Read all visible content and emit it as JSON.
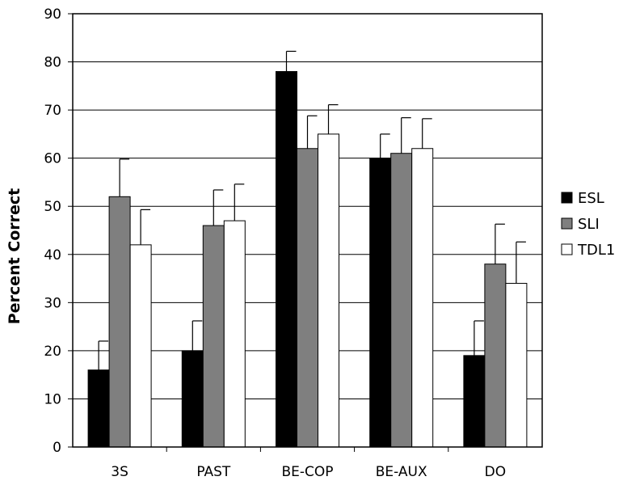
{
  "chart_data": {
    "type": "bar",
    "title": "",
    "xlabel": "",
    "ylabel": "Percent Correct",
    "ylim": [
      0,
      90
    ],
    "yticks": [
      0,
      10,
      20,
      30,
      40,
      50,
      60,
      70,
      80,
      90
    ],
    "grid": true,
    "legend_position": "right",
    "categories": [
      "3S",
      "PAST",
      "BE-COP",
      "BE-AUX",
      "DO"
    ],
    "series": [
      {
        "name": "ESL",
        "color": "#000000",
        "values": [
          16,
          20,
          78,
          60,
          19
        ],
        "error": [
          6,
          6.2,
          4.2,
          5,
          7.2
        ]
      },
      {
        "name": "SLI",
        "color": "#7f7f7f",
        "values": [
          52,
          46,
          62,
          61,
          38
        ],
        "error": [
          7.8,
          7.4,
          6.8,
          7.4,
          8.3
        ]
      },
      {
        "name": "TDL1",
        "color": "#ffffff",
        "values": [
          42,
          47,
          65,
          62,
          34
        ],
        "error": [
          7.3,
          7.6,
          6.1,
          6.2,
          8.6
        ]
      }
    ]
  }
}
